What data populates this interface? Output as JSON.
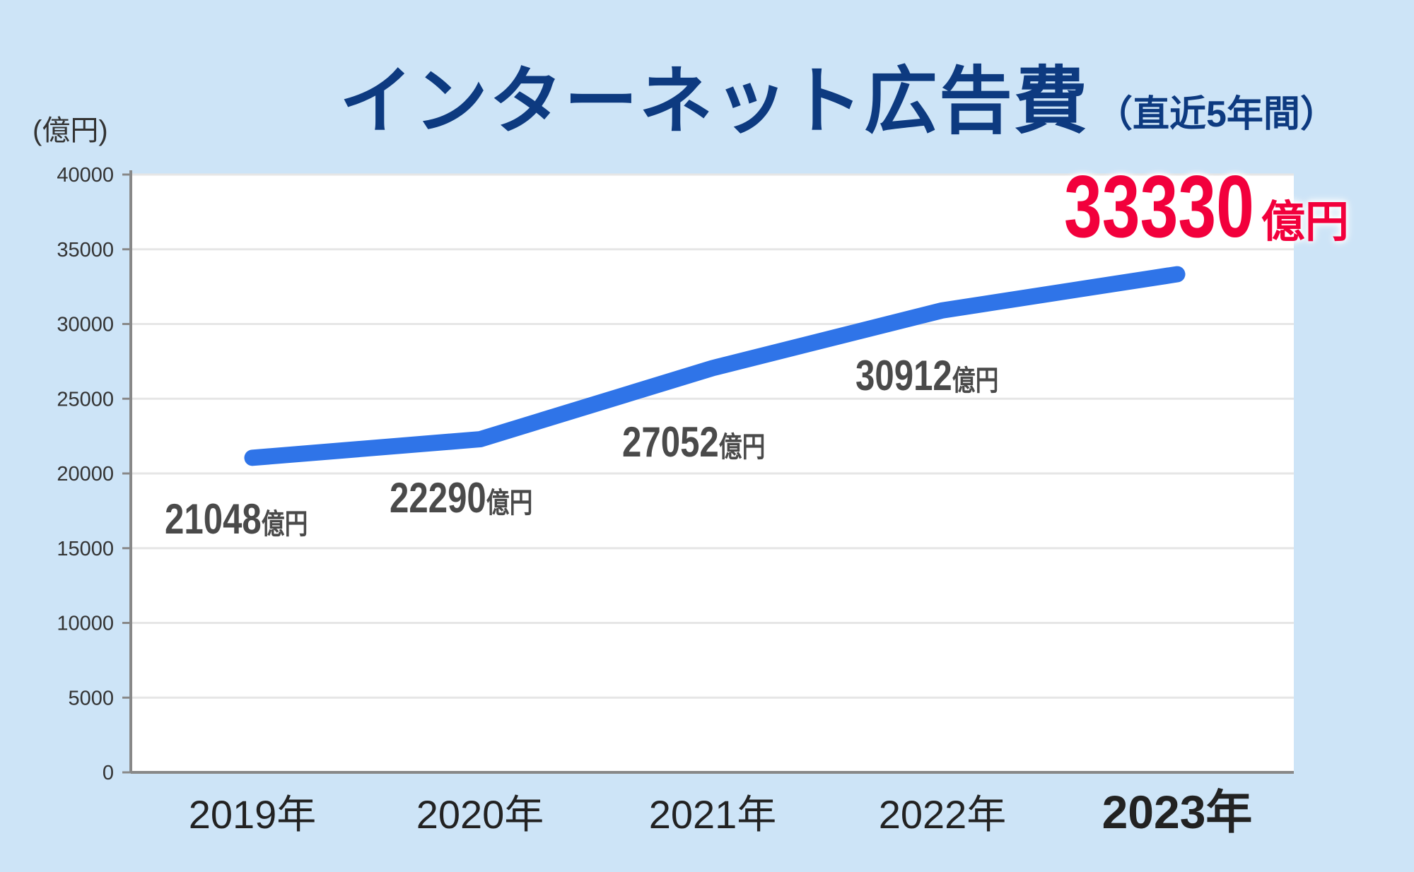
{
  "chart_data": {
    "type": "line",
    "title": "インターネット広告費",
    "subtitle": "（直近5年間）",
    "ylabel": "(億円)",
    "xlabel": "",
    "categories": [
      "2019年",
      "2020年",
      "2021年",
      "2022年",
      "2023年"
    ],
    "series": [
      {
        "name": "インターネット広告費",
        "values": [
          21048,
          22290,
          27052,
          30912,
          33330
        ]
      }
    ],
    "data_labels": [
      "21048",
      "22290",
      "27052",
      "30912",
      "33330"
    ],
    "data_label_unit": "億円",
    "ylim": [
      0,
      40000
    ],
    "yticks": [
      0,
      5000,
      10000,
      15000,
      20000,
      25000,
      30000,
      35000,
      40000
    ],
    "grid": true,
    "legend": "none",
    "highlight_index": 4
  },
  "colors": {
    "line": "#2f74e8",
    "highlight": "#f2003c",
    "title": "#0d3a80",
    "background": "#cde4f7"
  }
}
